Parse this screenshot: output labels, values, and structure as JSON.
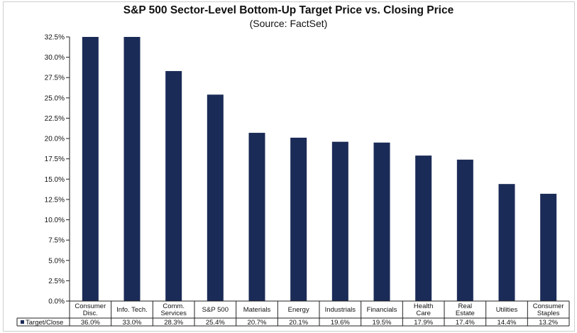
{
  "chart_data": {
    "type": "bar",
    "title": "S&P 500 Sector-Level Bottom-Up Target Price vs. Closing Price",
    "subtitle": "(Source: FactSet)",
    "categories": [
      [
        "Consumer",
        "Disc."
      ],
      [
        "Info. Tech."
      ],
      [
        "Comm.",
        "Services"
      ],
      [
        "S&P 500"
      ],
      [
        "Materials"
      ],
      [
        "Energy"
      ],
      [
        "Industrials"
      ],
      [
        "Financials"
      ],
      [
        "Health",
        "Care"
      ],
      [
        "Real",
        "Estate"
      ],
      [
        "Utilities"
      ],
      [
        "Consumer",
        "Staples"
      ]
    ],
    "series": [
      {
        "name": "Target/Close",
        "values": [
          36.0,
          33.0,
          28.3,
          25.4,
          20.7,
          20.1,
          19.6,
          19.5,
          17.9,
          17.4,
          14.4,
          13.2
        ],
        "value_labels": [
          "36.0%",
          "33.0%",
          "28.3%",
          "25.4%",
          "20.7%",
          "20.1%",
          "19.6%",
          "19.5%",
          "17.9%",
          "17.4%",
          "14.4%",
          "13.2%"
        ]
      }
    ],
    "ylim": [
      0,
      32.5
    ],
    "yticks": [
      0,
      2.5,
      5,
      7.5,
      10,
      12.5,
      15,
      17.5,
      20,
      22.5,
      25,
      27.5,
      30,
      32.5
    ],
    "ytick_labels": [
      "0.0%",
      "2.5%",
      "5.0%",
      "7.5%",
      "10.0%",
      "12.5%",
      "15.0%",
      "17.5%",
      "20.0%",
      "22.5%",
      "25.0%",
      "27.5%",
      "30.0%",
      "32.5%"
    ],
    "grid": false,
    "legend": "data-table",
    "bar_color": "#1b2b57"
  }
}
